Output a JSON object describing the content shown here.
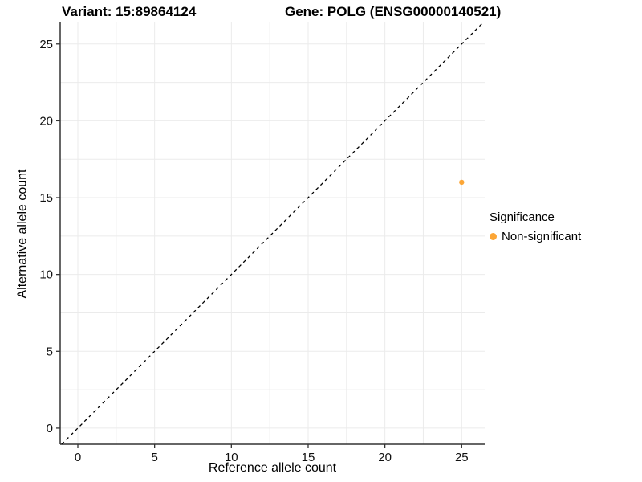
{
  "titles": {
    "variant": "Variant: 15:89864124",
    "gene": "Gene: POLG (ENSG00000140521)"
  },
  "chart_data": {
    "type": "scatter",
    "xlabel": "Reference allele count",
    "ylabel": "Alternative allele count",
    "xlim": [
      -1.15,
      26.5
    ],
    "ylim": [
      -1.05,
      26.4
    ],
    "xticks": [
      0,
      5,
      10,
      15,
      20,
      25
    ],
    "yticks": [
      0,
      5,
      10,
      15,
      20,
      25
    ],
    "grid": true,
    "grid_step": 2.5,
    "grid_color": "#ebebeb",
    "axis_color": "#333333",
    "points": [
      {
        "x": 25,
        "y": 16,
        "series": "Non-significant",
        "color": "#FCA636",
        "radius": 3.2
      }
    ],
    "identity_line": {
      "style": "dashed",
      "color": "#000000",
      "from": -1.05,
      "to": 26.4,
      "dash": "4 4"
    },
    "legend": {
      "title": "Significance",
      "position": "right",
      "entries": [
        {
          "label": "Non-significant",
          "color": "#FCA636"
        }
      ]
    }
  }
}
